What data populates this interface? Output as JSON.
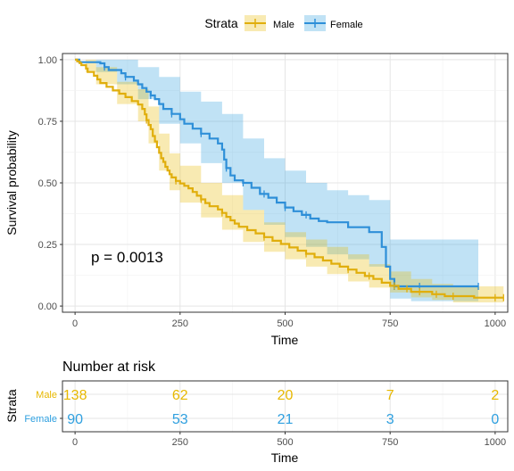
{
  "colors": {
    "male": "#E7B800",
    "female": "#2E9FDF",
    "male_line": "#E0AE0C",
    "female_line": "#2E8FD8"
  },
  "legend": {
    "title": "Strata",
    "items": [
      {
        "name": "Male",
        "color": "#E7B800"
      },
      {
        "name": "Female",
        "color": "#2E9FDF"
      }
    ]
  },
  "chart_data": [
    {
      "type": "line",
      "title": "",
      "xlabel": "Time",
      "ylabel": "Survival probability",
      "xlim": [
        -30,
        1030
      ],
      "ylim": [
        -0.025,
        1.025
      ],
      "xticks": [
        0,
        250,
        500,
        750,
        1000
      ],
      "yticks": [
        0.0,
        0.25,
        0.5,
        0.75,
        1.0
      ],
      "ytick_labels": [
        "0.00",
        "0.25",
        "0.50",
        "0.75",
        "1.00"
      ],
      "grid": true,
      "legend_position": "top",
      "annotation": "p = 0.0013",
      "series": [
        {
          "name": "Male",
          "points": [
            [
              0,
              1.0
            ],
            [
              5,
              0.993
            ],
            [
              11,
              0.986
            ],
            [
              15,
              0.978
            ],
            [
              26,
              0.964
            ],
            [
              30,
              0.95
            ],
            [
              45,
              0.935
            ],
            [
              53,
              0.92
            ],
            [
              60,
              0.905
            ],
            [
              75,
              0.89
            ],
            [
              90,
              0.875
            ],
            [
              105,
              0.862
            ],
            [
              120,
              0.848
            ],
            [
              135,
              0.832
            ],
            [
              150,
              0.818
            ],
            [
              160,
              0.8
            ],
            [
              166,
              0.778
            ],
            [
              170,
              0.755
            ],
            [
              175,
              0.735
            ],
            [
              180,
              0.718
            ],
            [
              185,
              0.69
            ],
            [
              190,
              0.668
            ],
            [
              195,
              0.645
            ],
            [
              200,
              0.622
            ],
            [
              205,
              0.6
            ],
            [
              210,
              0.585
            ],
            [
              215,
              0.565
            ],
            [
              220,
              0.55
            ],
            [
              225,
              0.535
            ],
            [
              230,
              0.522
            ],
            [
              240,
              0.508
            ],
            [
              250,
              0.498
            ],
            [
              260,
              0.488
            ],
            [
              270,
              0.478
            ],
            [
              280,
              0.463
            ],
            [
              290,
              0.448
            ],
            [
              300,
              0.433
            ],
            [
              310,
              0.418
            ],
            [
              320,
              0.405
            ],
            [
              340,
              0.392
            ],
            [
              350,
              0.378
            ],
            [
              360,
              0.362
            ],
            [
              370,
              0.348
            ],
            [
              380,
              0.335
            ],
            [
              390,
              0.322
            ],
            [
              410,
              0.308
            ],
            [
              430,
              0.295
            ],
            [
              450,
              0.28
            ],
            [
              470,
              0.265
            ],
            [
              490,
              0.252
            ],
            [
              510,
              0.238
            ],
            [
              530,
              0.225
            ],
            [
              550,
              0.212
            ],
            [
              570,
              0.198
            ],
            [
              590,
              0.185
            ],
            [
              610,
              0.172
            ],
            [
              630,
              0.16
            ],
            [
              650,
              0.148
            ],
            [
              670,
              0.135
            ],
            [
              690,
              0.122
            ],
            [
              710,
              0.11
            ],
            [
              730,
              0.095
            ],
            [
              750,
              0.082
            ],
            [
              770,
              0.07
            ],
            [
              800,
              0.058
            ],
            [
              850,
              0.048
            ],
            [
              880,
              0.04
            ],
            [
              950,
              0.034
            ],
            [
              1020,
              0.034
            ]
          ],
          "lower": [
            [
              0,
              1.0
            ],
            [
              25,
              0.95
            ],
            [
              50,
              0.9
            ],
            [
              100,
              0.82
            ],
            [
              150,
              0.75
            ],
            [
              175,
              0.66
            ],
            [
              200,
              0.55
            ],
            [
              225,
              0.47
            ],
            [
              250,
              0.42
            ],
            [
              300,
              0.36
            ],
            [
              350,
              0.31
            ],
            [
              400,
              0.26
            ],
            [
              450,
              0.22
            ],
            [
              500,
              0.19
            ],
            [
              550,
              0.16
            ],
            [
              600,
              0.13
            ],
            [
              650,
              0.1
            ],
            [
              700,
              0.075
            ],
            [
              750,
              0.055
            ],
            [
              800,
              0.035
            ],
            [
              850,
              0.025
            ],
            [
              900,
              0.015
            ],
            [
              1020,
              0.015
            ]
          ],
          "upper": [
            [
              0,
              1.0
            ],
            [
              25,
              1.0
            ],
            [
              50,
              0.97
            ],
            [
              100,
              0.91
            ],
            [
              150,
              0.88
            ],
            [
              175,
              0.81
            ],
            [
              200,
              0.7
            ],
            [
              225,
              0.62
            ],
            [
              250,
              0.57
            ],
            [
              300,
              0.5
            ],
            [
              350,
              0.45
            ],
            [
              400,
              0.39
            ],
            [
              450,
              0.34
            ],
            [
              500,
              0.3
            ],
            [
              550,
              0.27
            ],
            [
              600,
              0.24
            ],
            [
              650,
              0.21
            ],
            [
              700,
              0.17
            ],
            [
              750,
              0.14
            ],
            [
              800,
              0.11
            ],
            [
              850,
              0.09
            ],
            [
              900,
              0.08
            ],
            [
              1020,
              0.08
            ]
          ],
          "censor_x": [
            170,
            240,
            300,
            350,
            450,
            550,
            650,
            700,
            760,
            790,
            820,
            860,
            900,
            1000,
            1020
          ]
        },
        {
          "name": "Female",
          "points": [
            [
              0,
              1.0
            ],
            [
              10,
              0.99
            ],
            [
              60,
              0.985
            ],
            [
              70,
              0.97
            ],
            [
              80,
              0.958
            ],
            [
              110,
              0.945
            ],
            [
              120,
              0.93
            ],
            [
              140,
              0.915
            ],
            [
              150,
              0.9
            ],
            [
              160,
              0.885
            ],
            [
              170,
              0.87
            ],
            [
              180,
              0.855
            ],
            [
              190,
              0.84
            ],
            [
              200,
              0.82
            ],
            [
              210,
              0.8
            ],
            [
              230,
              0.78
            ],
            [
              250,
              0.758
            ],
            [
              260,
              0.74
            ],
            [
              280,
              0.72
            ],
            [
              300,
              0.7
            ],
            [
              320,
              0.68
            ],
            [
              340,
              0.66
            ],
            [
              350,
              0.635
            ],
            [
              355,
              0.595
            ],
            [
              360,
              0.56
            ],
            [
              370,
              0.53
            ],
            [
              380,
              0.51
            ],
            [
              400,
              0.5
            ],
            [
              420,
              0.48
            ],
            [
              440,
              0.455
            ],
            [
              460,
              0.44
            ],
            [
              480,
              0.42
            ],
            [
              500,
              0.4
            ],
            [
              520,
              0.385
            ],
            [
              540,
              0.37
            ],
            [
              560,
              0.355
            ],
            [
              580,
              0.345
            ],
            [
              600,
              0.34
            ],
            [
              640,
              0.34
            ],
            [
              650,
              0.32
            ],
            [
              700,
              0.3
            ],
            [
              730,
              0.24
            ],
            [
              740,
              0.16
            ],
            [
              750,
              0.11
            ],
            [
              760,
              0.08
            ],
            [
              960,
              0.08
            ]
          ],
          "lower": [
            [
              0,
              1.0
            ],
            [
              50,
              0.95
            ],
            [
              100,
              0.9
            ],
            [
              150,
              0.84
            ],
            [
              200,
              0.74
            ],
            [
              250,
              0.66
            ],
            [
              300,
              0.58
            ],
            [
              350,
              0.5
            ],
            [
              400,
              0.39
            ],
            [
              450,
              0.33
            ],
            [
              500,
              0.28
            ],
            [
              550,
              0.24
            ],
            [
              600,
              0.21
            ],
            [
              650,
              0.19
            ],
            [
              700,
              0.16
            ],
            [
              750,
              0.03
            ],
            [
              800,
              0.02
            ],
            [
              960,
              0.02
            ]
          ],
          "upper": [
            [
              0,
              1.0
            ],
            [
              50,
              1.0
            ],
            [
              100,
              1.0
            ],
            [
              150,
              0.97
            ],
            [
              200,
              0.93
            ],
            [
              250,
              0.87
            ],
            [
              300,
              0.83
            ],
            [
              350,
              0.78
            ],
            [
              400,
              0.68
            ],
            [
              450,
              0.6
            ],
            [
              500,
              0.55
            ],
            [
              550,
              0.5
            ],
            [
              600,
              0.47
            ],
            [
              650,
              0.45
            ],
            [
              700,
              0.43
            ],
            [
              750,
              0.27
            ],
            [
              800,
              0.27
            ],
            [
              960,
              0.27
            ]
          ],
          "censor_x": [
            70,
            120,
            180,
            230,
            300,
            360,
            400,
            450,
            500,
            550,
            760,
            820,
            960
          ]
        }
      ]
    },
    {
      "type": "table",
      "title": "Number at risk",
      "xlabel": "Time",
      "ylabel": "Strata",
      "xticks": [
        0,
        250,
        500,
        750,
        1000
      ],
      "rows": [
        {
          "name": "Male",
          "values": [
            138,
            62,
            20,
            7,
            2
          ]
        },
        {
          "name": "Female",
          "values": [
            90,
            53,
            21,
            3,
            0
          ]
        }
      ]
    }
  ]
}
